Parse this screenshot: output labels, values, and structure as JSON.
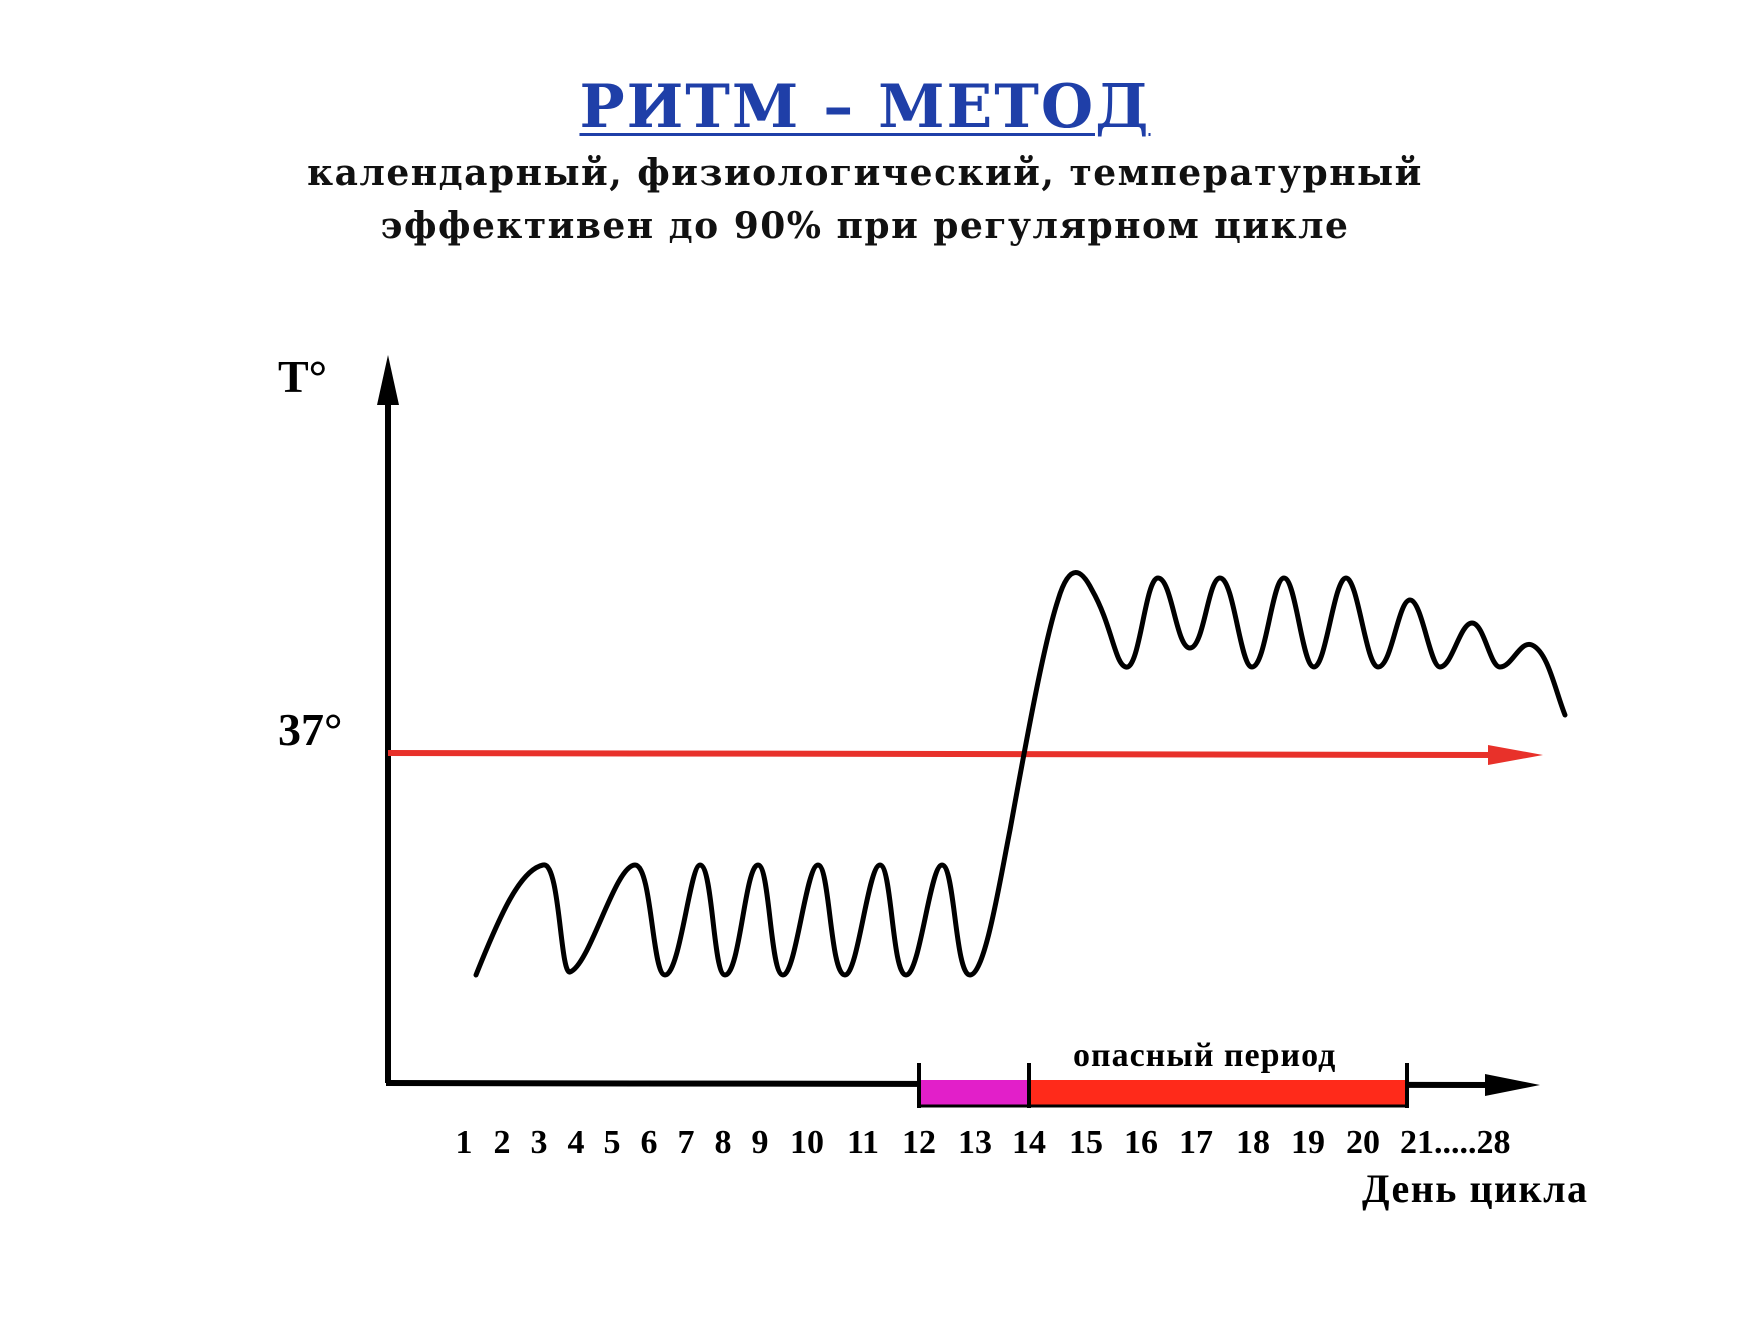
{
  "title": "РИТМ – МЕТОД",
  "subtitle_line1": "календарный, физиологический, температурный",
  "subtitle_line2": "эффективен до 90% при регулярном цикле",
  "y_axis_label": "Т°",
  "reference_label": "37°",
  "x_axis_label": "День цикла",
  "danger_label": "опасный период",
  "x_ticks": [
    "1",
    "2",
    "3",
    "4",
    "5",
    "6",
    "7",
    "8",
    "9",
    "10",
    "11",
    "12",
    "13",
    "14",
    "15",
    "16",
    "17",
    "18",
    "19",
    "20",
    "21.....28"
  ],
  "colors": {
    "title": "#1f3fa8",
    "reference_line": "#e8312a",
    "fertile_segment": "#e21fc9",
    "danger_segment": "#ff2a1a",
    "curve": "#000000"
  },
  "phases": [
    {
      "name": "fertile",
      "from_day": 12,
      "to_day": 14,
      "color_key": "fertile_segment"
    },
    {
      "name": "danger",
      "from_day": 14,
      "to_day": 21,
      "color_key": "danger_segment"
    }
  ]
}
